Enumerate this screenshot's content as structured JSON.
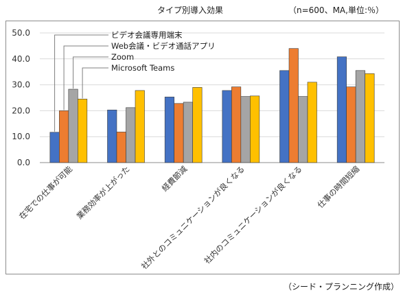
{
  "header": {
    "title": "タイプ別導入効果",
    "note": "（n=600、MA,単位:％）"
  },
  "footer": {
    "source": "（シード・プランニング作成）"
  },
  "chart_data": {
    "type": "bar",
    "title": "タイプ別導入効果",
    "ylim": [
      0,
      50
    ],
    "yticks": [
      "0.0",
      "10.0",
      "20.0",
      "30.0",
      "40.0",
      "50.0"
    ],
    "grid": true,
    "legend_position": "top-left",
    "categories": [
      "在宅での仕事が可能",
      "業務効率が上がった",
      "経費節減",
      "社外とのコミュニケーションが良くなる",
      "社内のコミュニケーションが良くなる",
      "仕事の時間短縮"
    ],
    "series": [
      {
        "name": "ビデオ会議専用端末",
        "color": "#4472c4",
        "values": [
          11.7,
          20.3,
          25.3,
          27.8,
          35.5,
          40.8
        ]
      },
      {
        "name": "Web会議・ビデオ通話アプリ",
        "color": "#ed7d31",
        "values": [
          20.0,
          11.8,
          22.8,
          29.2,
          44.0,
          29.2
        ]
      },
      {
        "name": "Zoom",
        "color": "#a5a5a5",
        "values": [
          28.3,
          21.2,
          23.3,
          25.5,
          25.5,
          35.5
        ]
      },
      {
        "name": "Microsoft Teams",
        "color": "#ffc000",
        "values": [
          24.5,
          27.8,
          29.0,
          25.7,
          31.0,
          34.3
        ]
      }
    ]
  }
}
